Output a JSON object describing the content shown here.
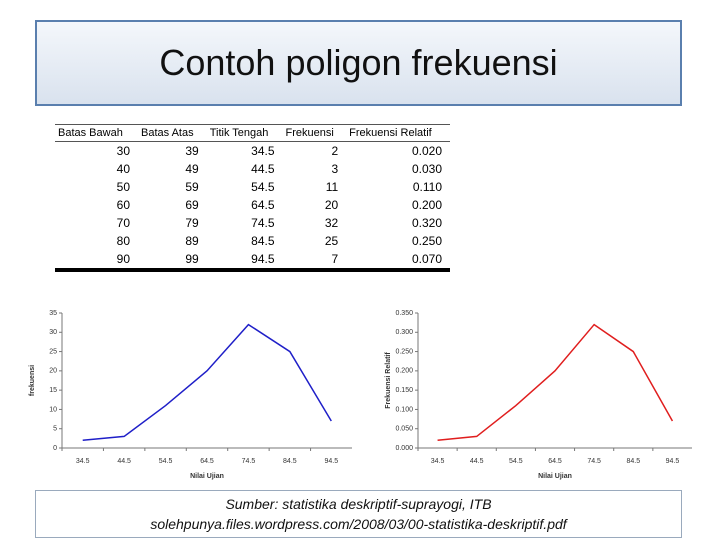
{
  "title": "Contoh poligon frekuensi",
  "table": {
    "headers": [
      "Batas Bawah",
      "Batas Atas",
      "Titik Tengah",
      "Frekuensi",
      "Frekuensi Relatif"
    ],
    "rows": [
      [
        "30",
        "39",
        "34.5",
        "2",
        "0.020"
      ],
      [
        "40",
        "49",
        "44.5",
        "3",
        "0.030"
      ],
      [
        "50",
        "59",
        "54.5",
        "11",
        "0.110"
      ],
      [
        "60",
        "69",
        "64.5",
        "20",
        "0.200"
      ],
      [
        "70",
        "79",
        "74.5",
        "32",
        "0.320"
      ],
      [
        "80",
        "89",
        "84.5",
        "25",
        "0.250"
      ],
      [
        "90",
        "99",
        "94.5",
        "7",
        "0.070"
      ]
    ]
  },
  "chart_data": [
    {
      "type": "line",
      "x_label": "Nilai Ujian",
      "y_label": "frekuensi",
      "categories": [
        34.5,
        44.5,
        54.5,
        64.5,
        74.5,
        84.5,
        94.5
      ],
      "values": [
        2,
        3,
        11,
        20,
        32,
        25,
        7
      ],
      "color": "#1f1fc8",
      "ylim": [
        0,
        35
      ],
      "yticks": [
        0,
        5,
        10,
        15,
        20,
        25,
        30,
        35
      ]
    },
    {
      "type": "line",
      "x_label": "Nilai Ujian",
      "y_label": "Frekuensi Relatif",
      "categories": [
        34.5,
        44.5,
        54.5,
        64.5,
        74.5,
        84.5,
        94.5
      ],
      "values": [
        0.02,
        0.03,
        0.11,
        0.2,
        0.32,
        0.25,
        0.07
      ],
      "color": "#e01e1e",
      "ylim": [
        0,
        0.35
      ],
      "yticks": [
        {
          "value": 0,
          "label": "0.000"
        },
        {
          "value": 0.05,
          "label": "0.050"
        },
        {
          "value": 0.1,
          "label": "0.100"
        },
        {
          "value": 0.15,
          "label": "0.150"
        },
        {
          "value": 0.2,
          "label": "0.200"
        },
        {
          "value": 0.25,
          "label": "0.250"
        },
        {
          "value": 0.3,
          "label": "0.300"
        },
        {
          "value": 0.35,
          "label": "0.350"
        }
      ]
    }
  ],
  "footer": {
    "line1": "Sumber: statistika deskriptif-suprayogi, ITB",
    "line2": "solehpunya.files.wordpress.com/2008/03/00-statistika-deskriptif.pdf"
  }
}
